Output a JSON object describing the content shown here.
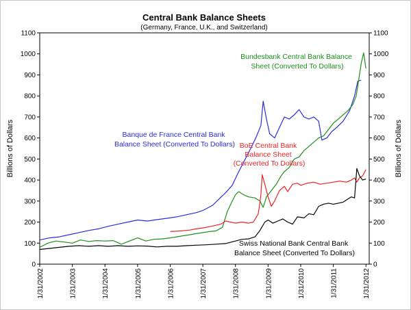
{
  "chart_data": {
    "type": "line",
    "title": "Central Bank Balance Sheets",
    "subtitle": "(Germany, France, U.K., and Switzerland)",
    "ylabel_left": "Billions of Dollars",
    "ylabel_right": "Billions of Dollars",
    "ylim": [
      0,
      1100
    ],
    "yticks": [
      0,
      100,
      200,
      300,
      400,
      500,
      600,
      700,
      800,
      900,
      1000,
      1100
    ],
    "xlim": [
      2002.0,
      2012.1
    ],
    "xticks": [
      {
        "value": 2002.0,
        "label": "1/31/2002"
      },
      {
        "value": 2003.0,
        "label": "1/31/2003"
      },
      {
        "value": 2004.0,
        "label": "1/31/2004"
      },
      {
        "value": 2005.0,
        "label": "1/31/2005"
      },
      {
        "value": 2006.0,
        "label": "1/31/2006"
      },
      {
        "value": 2007.0,
        "label": "1/31/2007"
      },
      {
        "value": 2008.0,
        "label": "1/31/2008"
      },
      {
        "value": 2009.0,
        "label": "1/31/2009"
      },
      {
        "value": 2010.0,
        "label": "1/31/2010"
      },
      {
        "value": 2011.0,
        "label": "1/31/2011"
      },
      {
        "value": 2012.0,
        "label": "1/31/2012"
      }
    ],
    "series": [
      {
        "name": "Banque de France Central Bank Balance Sheet (Converted To Dollars)",
        "color": "#2b2bdd",
        "points": [
          [
            2002.0,
            115
          ],
          [
            2002.3,
            125
          ],
          [
            2002.6,
            130
          ],
          [
            2002.9,
            140
          ],
          [
            2003.2,
            150
          ],
          [
            2003.5,
            160
          ],
          [
            2003.8,
            168
          ],
          [
            2004.1,
            180
          ],
          [
            2004.4,
            190
          ],
          [
            2004.7,
            200
          ],
          [
            2005.0,
            210
          ],
          [
            2005.3,
            205
          ],
          [
            2005.6,
            212
          ],
          [
            2005.9,
            218
          ],
          [
            2006.2,
            225
          ],
          [
            2006.5,
            235
          ],
          [
            2006.8,
            245
          ],
          [
            2007.0,
            255
          ],
          [
            2007.3,
            280
          ],
          [
            2007.5,
            310
          ],
          [
            2007.7,
            340
          ],
          [
            2007.9,
            375
          ],
          [
            2008.1,
            440
          ],
          [
            2008.3,
            500
          ],
          [
            2008.5,
            560
          ],
          [
            2008.65,
            610
          ],
          [
            2008.78,
            660
          ],
          [
            2008.85,
            775
          ],
          [
            2008.95,
            690
          ],
          [
            2009.05,
            620
          ],
          [
            2009.2,
            600
          ],
          [
            2009.35,
            650
          ],
          [
            2009.5,
            700
          ],
          [
            2009.65,
            690
          ],
          [
            2009.8,
            710
          ],
          [
            2009.95,
            735
          ],
          [
            2010.1,
            700
          ],
          [
            2010.25,
            690
          ],
          [
            2010.4,
            700
          ],
          [
            2010.55,
            680
          ],
          [
            2010.65,
            590
          ],
          [
            2010.8,
            600
          ],
          [
            2010.95,
            630
          ],
          [
            2011.1,
            650
          ],
          [
            2011.3,
            680
          ],
          [
            2011.5,
            730
          ],
          [
            2011.65,
            800
          ],
          [
            2011.75,
            870
          ],
          [
            2011.85,
            875
          ]
        ]
      },
      {
        "name": "Bundesbank Central Bank Balance Sheet (Converted To Dollars)",
        "color": "#1a8f1a",
        "points": [
          [
            2002.0,
            80
          ],
          [
            2002.25,
            100
          ],
          [
            2002.5,
            110
          ],
          [
            2002.75,
            105
          ],
          [
            2003.0,
            100
          ],
          [
            2003.25,
            115
          ],
          [
            2003.5,
            108
          ],
          [
            2003.75,
            112
          ],
          [
            2004.0,
            110
          ],
          [
            2004.25,
            112
          ],
          [
            2004.5,
            95
          ],
          [
            2004.75,
            110
          ],
          [
            2005.0,
            125
          ],
          [
            2005.25,
            110
          ],
          [
            2005.5,
            118
          ],
          [
            2005.75,
            120
          ],
          [
            2006.0,
            125
          ],
          [
            2006.2,
            130
          ],
          [
            2006.4,
            135
          ],
          [
            2006.6,
            140
          ],
          [
            2006.8,
            145
          ],
          [
            2007.0,
            150
          ],
          [
            2007.2,
            155
          ],
          [
            2007.4,
            158
          ],
          [
            2007.6,
            175
          ],
          [
            2007.75,
            250
          ],
          [
            2007.9,
            300
          ],
          [
            2008.0,
            330
          ],
          [
            2008.1,
            345
          ],
          [
            2008.25,
            330
          ],
          [
            2008.4,
            320
          ],
          [
            2008.6,
            315
          ],
          [
            2008.75,
            300
          ],
          [
            2008.85,
            270
          ],
          [
            2008.95,
            320
          ],
          [
            2009.1,
            350
          ],
          [
            2009.25,
            380
          ],
          [
            2009.4,
            420
          ],
          [
            2009.5,
            440
          ],
          [
            2009.65,
            460
          ],
          [
            2009.8,
            500
          ],
          [
            2009.95,
            510
          ],
          [
            2010.1,
            540
          ],
          [
            2010.25,
            560
          ],
          [
            2010.4,
            580
          ],
          [
            2010.55,
            600
          ],
          [
            2010.7,
            610
          ],
          [
            2010.85,
            640
          ],
          [
            2011.0,
            670
          ],
          [
            2011.15,
            690
          ],
          [
            2011.3,
            710
          ],
          [
            2011.45,
            730
          ],
          [
            2011.6,
            760
          ],
          [
            2011.7,
            800
          ],
          [
            2011.78,
            880
          ],
          [
            2011.86,
            960
          ],
          [
            2011.93,
            1005
          ],
          [
            2012.0,
            930
          ]
        ]
      },
      {
        "name": "BoE Central Bank Balance Sheet (Converted To Dollars)",
        "color": "#ee2222",
        "points": [
          [
            2006.0,
            155
          ],
          [
            2006.3,
            158
          ],
          [
            2006.6,
            162
          ],
          [
            2006.8,
            168
          ],
          [
            2007.0,
            172
          ],
          [
            2007.2,
            178
          ],
          [
            2007.4,
            185
          ],
          [
            2007.55,
            190
          ],
          [
            2007.7,
            205
          ],
          [
            2007.85,
            200
          ],
          [
            2008.0,
            195
          ],
          [
            2008.2,
            200
          ],
          [
            2008.4,
            195
          ],
          [
            2008.55,
            200
          ],
          [
            2008.7,
            240
          ],
          [
            2008.78,
            330
          ],
          [
            2008.82,
            425
          ],
          [
            2008.9,
            380
          ],
          [
            2009.0,
            320
          ],
          [
            2009.1,
            275
          ],
          [
            2009.2,
            300
          ],
          [
            2009.35,
            350
          ],
          [
            2009.5,
            370
          ],
          [
            2009.6,
            345
          ],
          [
            2009.75,
            380
          ],
          [
            2009.9,
            385
          ],
          [
            2010.0,
            375
          ],
          [
            2010.2,
            385
          ],
          [
            2010.4,
            390
          ],
          [
            2010.6,
            380
          ],
          [
            2010.8,
            385
          ],
          [
            2011.0,
            390
          ],
          [
            2011.2,
            395
          ],
          [
            2011.4,
            390
          ],
          [
            2011.55,
            400
          ],
          [
            2011.65,
            410
          ],
          [
            2011.72,
            390
          ],
          [
            2011.8,
            410
          ],
          [
            2011.9,
            420
          ],
          [
            2012.0,
            450
          ]
        ]
      },
      {
        "name": "Swiss National Bank Central Bank Balance Sheet (Converted To Dollars)",
        "color": "#000000",
        "points": [
          [
            2002.0,
            70
          ],
          [
            2002.3,
            75
          ],
          [
            2002.6,
            80
          ],
          [
            2002.9,
            85
          ],
          [
            2003.2,
            88
          ],
          [
            2003.5,
            85
          ],
          [
            2003.8,
            88
          ],
          [
            2004.1,
            85
          ],
          [
            2004.4,
            88
          ],
          [
            2004.7,
            85
          ],
          [
            2005.0,
            87
          ],
          [
            2005.3,
            86
          ],
          [
            2005.6,
            82
          ],
          [
            2005.9,
            85
          ],
          [
            2006.2,
            85
          ],
          [
            2006.5,
            88
          ],
          [
            2006.8,
            90
          ],
          [
            2007.1,
            92
          ],
          [
            2007.4,
            95
          ],
          [
            2007.7,
            98
          ],
          [
            2008.0,
            110
          ],
          [
            2008.2,
            118
          ],
          [
            2008.4,
            120
          ],
          [
            2008.6,
            130
          ],
          [
            2008.75,
            160
          ],
          [
            2008.9,
            200
          ],
          [
            2009.0,
            210
          ],
          [
            2009.15,
            195
          ],
          [
            2009.3,
            205
          ],
          [
            2009.45,
            215
          ],
          [
            2009.6,
            200
          ],
          [
            2009.75,
            190
          ],
          [
            2009.9,
            225
          ],
          [
            2010.1,
            220
          ],
          [
            2010.25,
            240
          ],
          [
            2010.4,
            235
          ],
          [
            2010.55,
            275
          ],
          [
            2010.7,
            285
          ],
          [
            2010.85,
            290
          ],
          [
            2011.0,
            285
          ],
          [
            2011.15,
            290
          ],
          [
            2011.3,
            295
          ],
          [
            2011.45,
            310
          ],
          [
            2011.55,
            320
          ],
          [
            2011.65,
            315
          ],
          [
            2011.72,
            455
          ],
          [
            2011.8,
            420
          ],
          [
            2011.9,
            400
          ],
          [
            2012.0,
            405
          ]
        ]
      }
    ],
    "annotations": [
      {
        "series": 0,
        "lines": [
          "Banque de France Central Bank",
          "Balance Sheet (Converted To Dollars)"
        ]
      },
      {
        "series": 1,
        "lines": [
          "Bundesbank Central Bank Balance",
          "Sheet (Converted To Dollars)"
        ]
      },
      {
        "series": 2,
        "lines": [
          "BoE Central Bank",
          "Balance Sheet",
          "(Converted To Dollars)"
        ]
      },
      {
        "series": 3,
        "lines": [
          "Swiss National Bank Central Bank",
          "Balance Sheet (Converted To Dollars)"
        ]
      }
    ]
  }
}
